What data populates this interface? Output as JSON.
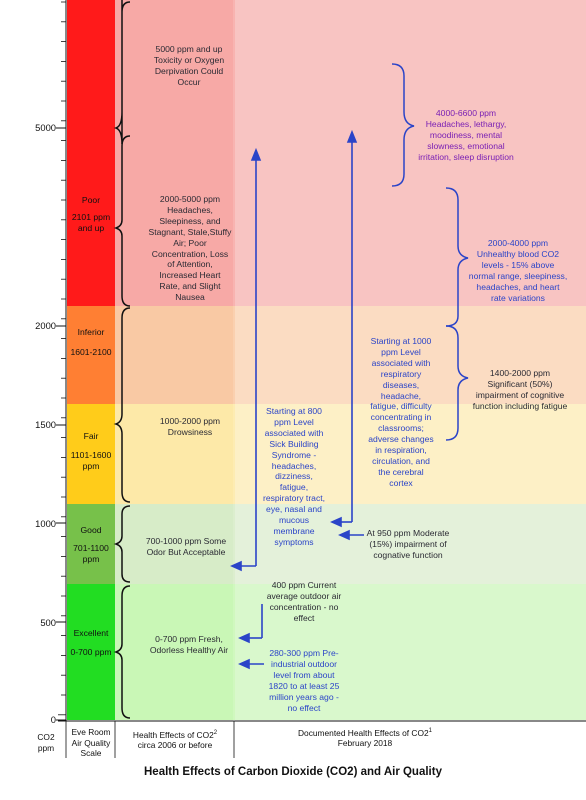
{
  "colors": {
    "excellent": "#22dd22",
    "good": "#77c14a",
    "fair": "#ffcc1a",
    "inferior": "#ff7f33",
    "poor": "#ff1a1a",
    "bg_excellent": "#c9f7b6",
    "bg_good": "#d7ecc8",
    "bg_fair": "#fde9a8",
    "bg_inferior": "#f9c9a4",
    "bg_poor": "#f7a9a6",
    "bg_poor_right": "#f8c4c2",
    "arrow": "#2b44c8",
    "bracket_black": "#111111",
    "bracket_blue": "#2b44c8"
  },
  "axis": {
    "label_line1": "CO2",
    "label_line2": "ppm",
    "ticks": [
      "0",
      "500",
      "1000",
      "1500",
      "2000",
      "5000"
    ]
  },
  "bands": [
    {
      "name": "Excellent",
      "range": "0-700 ppm"
    },
    {
      "name": "Good",
      "range": "701-1100 ppm"
    },
    {
      "name": "Fair",
      "range": "1101-1600 ppm"
    },
    {
      "name": "Inferior",
      "range": "1601-2100"
    },
    {
      "name": "Poor",
      "range": "2101 ppm and up"
    }
  ],
  "left_effects": {
    "toxic": "5000 ppm and up Toxicity or Oxygen Derpivation Could Occur",
    "poor": "2000-5000 ppm Headaches, Sleepiness, and Stagnant, Stale,Stuffy Air; Poor Concentration, Loss of Attention, Increased Heart Rate, and Slight Nausea",
    "fair": "1000-2000 ppm Drowsiness",
    "good": "700-1000 ppm Some Odor But Acceptable",
    "excellent": "0-700 ppm Fresh, Odorless Healthy Air"
  },
  "right_effects": {
    "e4000_6600": "4000-6600 ppm Headaches, lethargy, moodiness, mental slowness, emotional irritation, sleep disruption",
    "e2000_4000": "2000-4000 ppm Unhealthy blood CO2 levels - 15% above normal range, sleepiness, headaches, and heart rate variations",
    "e1400_2000": "1400-2000 ppm Significant (50%) impairment of cognitive function including fatigue",
    "e1000": "Starting at 1000 ppm Level associated with respiratory diseases, headache, fatigue, difficulty concentrating in classrooms; adverse changes in respiration, circulation, and the cerebral cortex",
    "e800": "Starting at 800 ppm Level associated with Sick Building Syndrome - headaches, dizziness, fatigue, respiratory tract, eye, nasal and mucous membrane symptoms",
    "e950": "At 950 ppm Moderate (15%) impairment of cognative function",
    "e400": "400 ppm Current average outdoor air concentration - no effect",
    "e280": "280-300 ppm Pre-industrial outdoor level from about 1820 to at least 25 million years ago - no effect"
  },
  "footer": {
    "scale_label": "Eve Room Air Quality Scale",
    "col2_line1": "Health Effects of CO2",
    "col2_sup": "2",
    "col2_line2": "circa 2006 or before",
    "col3_line1": "Documented Health Effects of CO2",
    "col3_sup": "1",
    "col3_line2": "February 2018"
  },
  "title": "Health Effects of Carbon Dioxide (CO2) and Air Quality"
}
